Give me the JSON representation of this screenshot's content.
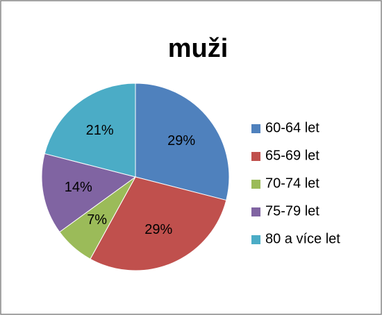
{
  "chart_data": {
    "type": "pie",
    "title": "muži",
    "categories": [
      "60-64 let",
      "65-69 let",
      "70-74 let",
      "75-79 let",
      "80 a více let"
    ],
    "values": [
      29,
      29,
      7,
      14,
      21
    ],
    "value_labels": [
      "29%",
      "29%",
      "7%",
      "14%",
      "21%"
    ],
    "colors": [
      "#4f81bd",
      "#c0504d",
      "#9bbb59",
      "#8064a2",
      "#4bacc6"
    ],
    "legend": "right"
  }
}
